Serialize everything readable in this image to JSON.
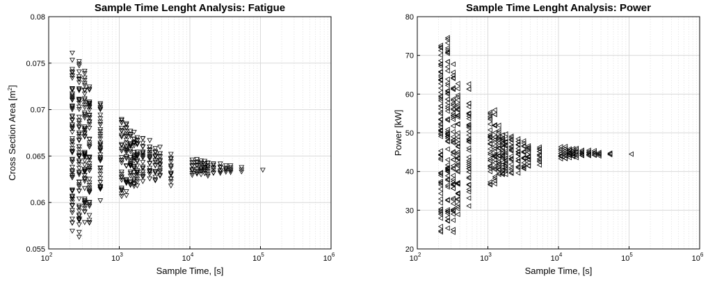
{
  "chart_data": [
    {
      "type": "scatter",
      "title": "Sample Time Lenght Analysis: Fatigue",
      "xlabel": "Sample Time, [s]",
      "ylabel": "Cross Section Area [m",
      "ylabel_sup": "2",
      "ylabel_end": "]",
      "xscale": "log",
      "xlim": [
        100,
        1000000
      ],
      "ylim": [
        0.055,
        0.08
      ],
      "yticks": [
        "0.055",
        "0.06",
        "0.065",
        "0.07",
        "0.075",
        "0.08"
      ],
      "ytick_values": [
        0.055,
        0.06,
        0.065,
        0.07,
        0.075,
        0.08
      ],
      "xticks": [
        {
          "base": "10",
          "exp": "2"
        },
        {
          "base": "10",
          "exp": "3"
        },
        {
          "base": "10",
          "exp": "4"
        },
        {
          "base": "10",
          "exp": "5"
        },
        {
          "base": "10",
          "exp": "6"
        }
      ],
      "xtick_values": [
        100,
        1000,
        10000,
        100000,
        1000000
      ],
      "grid": true,
      "marker": "triangle-down",
      "series": [
        {
          "x": 216,
          "ymin": 0.0557,
          "ymax": 0.077,
          "count": 70
        },
        {
          "x": 270,
          "ymin": 0.0551,
          "ymax": 0.0763,
          "count": 65
        },
        {
          "x": 324,
          "ymin": 0.0573,
          "ymax": 0.075,
          "count": 55
        },
        {
          "x": 378,
          "ymin": 0.0572,
          "ymax": 0.0733,
          "count": 50
        },
        {
          "x": 540,
          "ymin": 0.0597,
          "ymax": 0.0717,
          "count": 40
        },
        {
          "x": 1080,
          "ymin": 0.0597,
          "ymax": 0.07,
          "count": 30
        },
        {
          "x": 1260,
          "ymin": 0.0607,
          "ymax": 0.0695,
          "count": 28
        },
        {
          "x": 1440,
          "ymin": 0.0612,
          "ymax": 0.0683,
          "count": 26
        },
        {
          "x": 1620,
          "ymin": 0.0615,
          "ymax": 0.0678,
          "count": 24
        },
        {
          "x": 1800,
          "ymin": 0.0618,
          "ymax": 0.0675,
          "count": 22
        },
        {
          "x": 2160,
          "ymin": 0.062,
          "ymax": 0.0673,
          "count": 20
        },
        {
          "x": 2700,
          "ymin": 0.0623,
          "ymax": 0.0668,
          "count": 18
        },
        {
          "x": 3240,
          "ymin": 0.0622,
          "ymax": 0.0662,
          "count": 16
        },
        {
          "x": 3780,
          "ymin": 0.0625,
          "ymax": 0.066,
          "count": 15
        },
        {
          "x": 5400,
          "ymin": 0.0615,
          "ymax": 0.0656,
          "count": 14
        },
        {
          "x": 10800,
          "ymin": 0.0628,
          "ymax": 0.0648,
          "count": 10
        },
        {
          "x": 12600,
          "ymin": 0.063,
          "ymax": 0.0647,
          "count": 9
        },
        {
          "x": 14400,
          "ymin": 0.063,
          "ymax": 0.0646,
          "count": 9
        },
        {
          "x": 16200,
          "ymin": 0.0631,
          "ymax": 0.0645,
          "count": 8
        },
        {
          "x": 18000,
          "ymin": 0.0628,
          "ymax": 0.0645,
          "count": 8
        },
        {
          "x": 21600,
          "ymin": 0.063,
          "ymax": 0.0643,
          "count": 7
        },
        {
          "x": 27000,
          "ymin": 0.063,
          "ymax": 0.0642,
          "count": 6
        },
        {
          "x": 32400,
          "ymin": 0.0632,
          "ymax": 0.064,
          "count": 5
        },
        {
          "x": 37800,
          "ymin": 0.0631,
          "ymax": 0.0641,
          "count": 5
        },
        {
          "x": 54000,
          "ymin": 0.0633,
          "ymax": 0.0638,
          "count": 3
        },
        {
          "x": 108000,
          "ymin": 0.0635,
          "ymax": 0.0635,
          "count": 1
        }
      ]
    },
    {
      "type": "scatter",
      "title": "Sample Time Lenght Analysis: Power",
      "xlabel": "Sample Time, [s]",
      "ylabel": "Power [kW]",
      "xscale": "log",
      "xlim": [
        100,
        1000000
      ],
      "ylim": [
        20,
        80
      ],
      "yticks": [
        "20",
        "30",
        "40",
        "50",
        "60",
        "70",
        "80"
      ],
      "ytick_values": [
        20,
        30,
        40,
        50,
        60,
        70,
        80
      ],
      "xticks": [
        {
          "base": "10",
          "exp": "2"
        },
        {
          "base": "10",
          "exp": "3"
        },
        {
          "base": "10",
          "exp": "4"
        },
        {
          "base": "10",
          "exp": "5"
        },
        {
          "base": "10",
          "exp": "6"
        }
      ],
      "xtick_values": [
        100,
        1000,
        10000,
        100000,
        1000000
      ],
      "grid": true,
      "marker": "triangle-left",
      "series": [
        {
          "x": 216,
          "ymin": 21.5,
          "ymax": 76.0,
          "count": 70
        },
        {
          "x": 270,
          "ymin": 22.5,
          "ymax": 76.5,
          "count": 65
        },
        {
          "x": 324,
          "ymin": 23.5,
          "ymax": 70.0,
          "count": 55
        },
        {
          "x": 378,
          "ymin": 27.0,
          "ymax": 64.5,
          "count": 50
        },
        {
          "x": 540,
          "ymin": 31.0,
          "ymax": 63.0,
          "count": 40
        },
        {
          "x": 1080,
          "ymin": 35.5,
          "ymax": 57.5,
          "count": 30
        },
        {
          "x": 1260,
          "ymin": 36.5,
          "ymax": 56.0,
          "count": 28
        },
        {
          "x": 1440,
          "ymin": 37.5,
          "ymax": 52.0,
          "count": 26
        },
        {
          "x": 1620,
          "ymin": 38.0,
          "ymax": 51.0,
          "count": 24
        },
        {
          "x": 1800,
          "ymin": 38.5,
          "ymax": 50.0,
          "count": 22
        },
        {
          "x": 2160,
          "ymin": 39.0,
          "ymax": 50.0,
          "count": 20
        },
        {
          "x": 2700,
          "ymin": 39.5,
          "ymax": 49.0,
          "count": 18
        },
        {
          "x": 3240,
          "ymin": 40.0,
          "ymax": 48.0,
          "count": 16
        },
        {
          "x": 3780,
          "ymin": 41.0,
          "ymax": 47.5,
          "count": 15
        },
        {
          "x": 5400,
          "ymin": 41.5,
          "ymax": 47.0,
          "count": 14
        },
        {
          "x": 10800,
          "ymin": 43.0,
          "ymax": 46.5,
          "count": 10
        },
        {
          "x": 12600,
          "ymin": 43.0,
          "ymax": 46.5,
          "count": 9
        },
        {
          "x": 14400,
          "ymin": 43.5,
          "ymax": 46.0,
          "count": 9
        },
        {
          "x": 16200,
          "ymin": 43.5,
          "ymax": 46.0,
          "count": 8
        },
        {
          "x": 18000,
          "ymin": 43.5,
          "ymax": 46.0,
          "count": 8
        },
        {
          "x": 21600,
          "ymin": 44.0,
          "ymax": 45.5,
          "count": 7
        },
        {
          "x": 27000,
          "ymin": 44.0,
          "ymax": 45.5,
          "count": 6
        },
        {
          "x": 32400,
          "ymin": 44.0,
          "ymax": 45.5,
          "count": 5
        },
        {
          "x": 37800,
          "ymin": 44.0,
          "ymax": 45.0,
          "count": 5
        },
        {
          "x": 54000,
          "ymin": 44.3,
          "ymax": 44.8,
          "count": 3
        },
        {
          "x": 108000,
          "ymin": 44.5,
          "ymax": 44.5,
          "count": 1
        }
      ]
    }
  ]
}
